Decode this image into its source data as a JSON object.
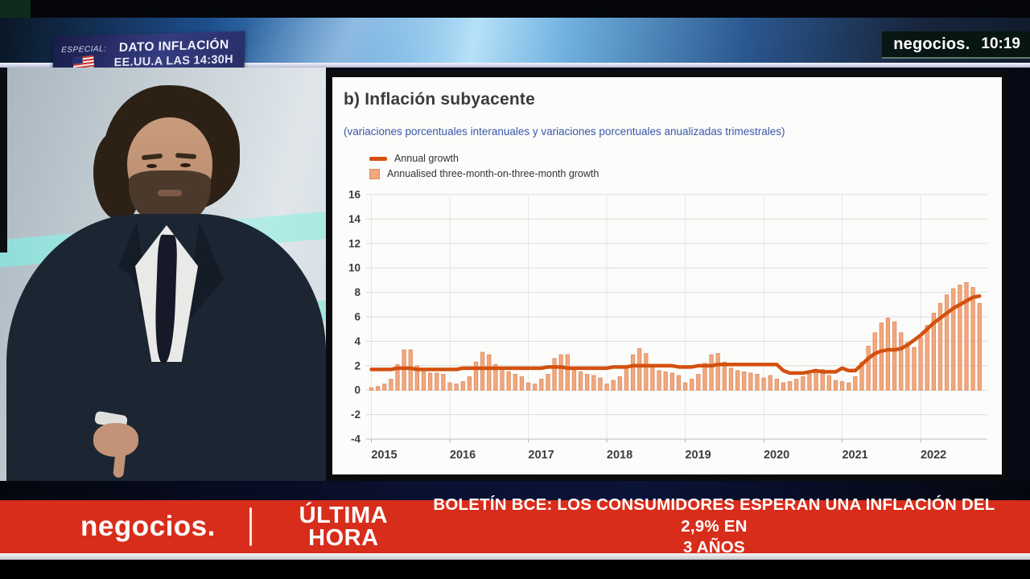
{
  "top_bar": {
    "especial_label": "ESPECIAL:",
    "especial_line1": "DATO INFLACIÓN",
    "especial_line2": "EE.UU.A LAS 14:30H",
    "brand": "negocios.",
    "time": "10:19"
  },
  "ticker": {
    "brand": "negocios.",
    "breaking_label": "ÚLTIMA HORA",
    "headline_line1": "BOLETÍN BCE: LOS CONSUMIDORES ESPERAN UNA INFLACIÓN DEL 2,9% EN",
    "headline_line2": "3 AÑOS"
  },
  "chart_data": {
    "type": "bar+line",
    "title": "b) Inflación subyacente",
    "subtitle": "(variaciones porcentuales interanuales y variaciones porcentuales anualizadas trimestrales)",
    "legend": [
      "Annual growth",
      "Annualised three-month-on-three-month growth"
    ],
    "legend_position": "top-left",
    "grid": true,
    "ylim": [
      -4,
      16
    ],
    "y_ticks": [
      16,
      14,
      12,
      10,
      8,
      6,
      4,
      2,
      0,
      -2,
      -4
    ],
    "x_tick_labels": [
      "2015",
      "2016",
      "2017",
      "2018",
      "2019",
      "2020",
      "2021",
      "2022"
    ],
    "x_start_month": "2015-01",
    "months_per_year": 12,
    "colors": {
      "line": "#d4500f",
      "bar_fill": "#f2a87e",
      "bar_border": "#dd8a5c",
      "grid": "#dcdcdc",
      "axis_text": "#3d3d3d"
    },
    "series": [
      {
        "name": "Annual growth",
        "type": "line",
        "values": [
          1.7,
          1.7,
          1.7,
          1.7,
          1.8,
          1.8,
          1.8,
          1.7,
          1.7,
          1.7,
          1.7,
          1.7,
          1.7,
          1.7,
          1.8,
          1.8,
          1.8,
          1.8,
          1.8,
          1.8,
          1.8,
          1.8,
          1.8,
          1.8,
          1.8,
          1.8,
          1.8,
          1.9,
          1.9,
          1.9,
          1.8,
          1.8,
          1.8,
          1.8,
          1.8,
          1.8,
          1.8,
          1.9,
          1.9,
          1.9,
          2.0,
          2.0,
          2.0,
          2.0,
          2.0,
          2.0,
          2.0,
          1.9,
          1.9,
          1.9,
          2.0,
          2.0,
          2.0,
          2.1,
          2.1,
          2.1,
          2.1,
          2.1,
          2.1,
          2.1,
          2.1,
          2.1,
          2.1,
          1.6,
          1.4,
          1.4,
          1.4,
          1.5,
          1.6,
          1.5,
          1.5,
          1.5,
          1.8,
          1.6,
          1.6,
          2.1,
          2.6,
          3.0,
          3.2,
          3.3,
          3.3,
          3.4,
          3.7,
          4.1,
          4.5,
          5.0,
          5.5,
          5.9,
          6.3,
          6.7,
          7.0,
          7.3,
          7.6,
          7.7
        ]
      },
      {
        "name": "Annualised three-month-on-three-month growth",
        "type": "bar",
        "values": [
          0.2,
          0.3,
          0.5,
          0.9,
          2.1,
          3.3,
          3.3,
          2.0,
          1.5,
          1.4,
          1.4,
          1.3,
          0.6,
          0.5,
          0.7,
          1.1,
          2.3,
          3.1,
          2.9,
          2.1,
          1.6,
          1.5,
          1.3,
          1.1,
          0.6,
          0.5,
          0.9,
          1.3,
          2.6,
          2.9,
          2.9,
          1.7,
          1.5,
          1.3,
          1.2,
          1.0,
          0.5,
          0.8,
          1.1,
          2.0,
          2.9,
          3.4,
          3.0,
          1.9,
          1.6,
          1.5,
          1.4,
          1.2,
          0.6,
          0.9,
          1.3,
          2.2,
          2.9,
          3.0,
          2.3,
          1.8,
          1.6,
          1.5,
          1.4,
          1.3,
          1.0,
          1.2,
          0.9,
          0.6,
          0.7,
          0.9,
          1.1,
          1.3,
          1.6,
          1.7,
          1.2,
          0.8,
          0.7,
          0.6,
          1.1,
          2.3,
          3.6,
          4.7,
          5.5,
          5.9,
          5.6,
          4.7,
          3.9,
          3.5,
          4.3,
          5.3,
          6.3,
          7.1,
          7.8,
          8.3,
          8.6,
          8.8,
          8.4,
          7.1
        ]
      }
    ]
  }
}
